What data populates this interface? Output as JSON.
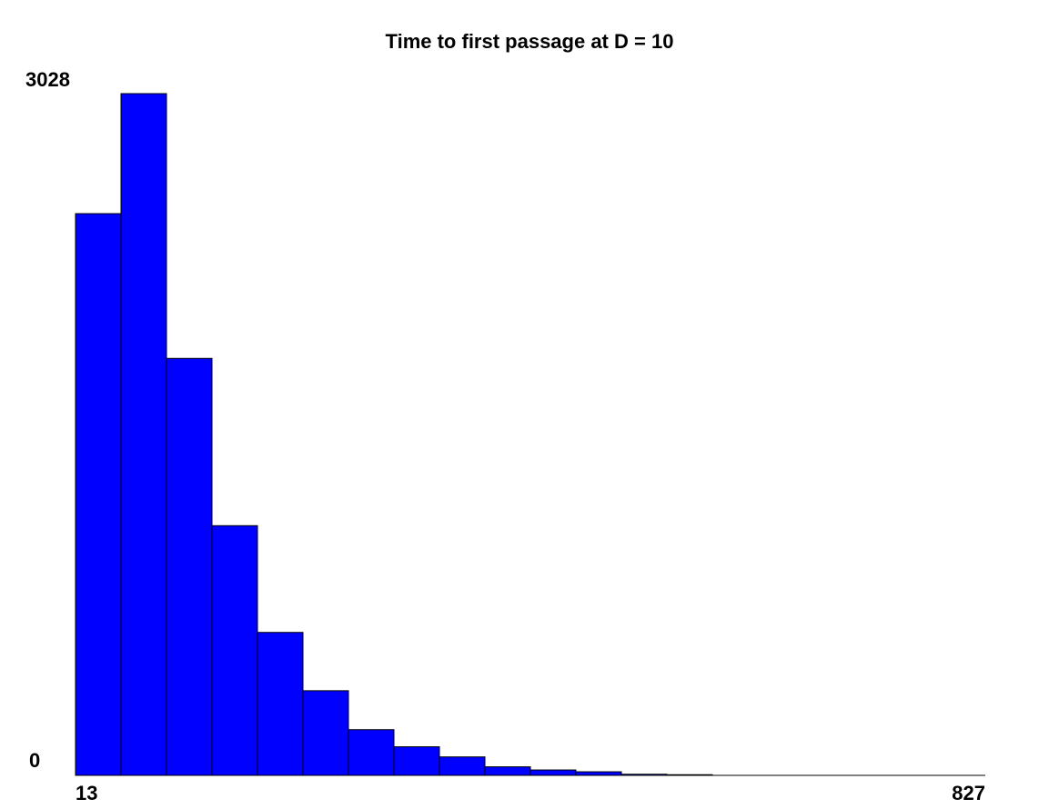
{
  "chart_data": {
    "type": "bar",
    "title": "Time to first passage at D = 10",
    "xlabel": "",
    "ylabel": "",
    "x_min_label": "13",
    "x_max_label": "827",
    "y_min_label": "0",
    "y_max_label": "3028",
    "xlim": [
      13,
      827
    ],
    "ylim": [
      0,
      3028
    ],
    "bin_count_total": 20,
    "bar_color": "#0000ff",
    "grid": false,
    "values": [
      2495,
      3028,
      1852,
      1109,
      635,
      376,
      203,
      127,
      82,
      38,
      24,
      16,
      5,
      3,
      0,
      0,
      0,
      0,
      0,
      0
    ]
  }
}
